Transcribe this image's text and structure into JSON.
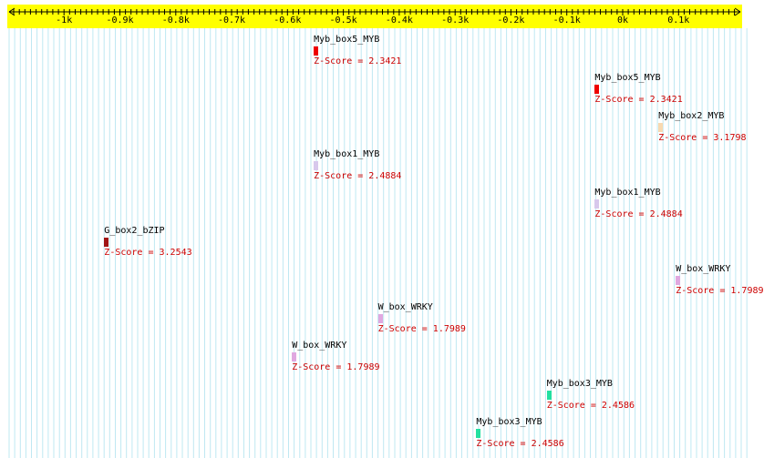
{
  "ruler": {
    "ticks": [
      {
        "value": -1000,
        "label": "-1k"
      },
      {
        "value": -900,
        "label": "-0.9k"
      },
      {
        "value": -800,
        "label": "-0.8k"
      },
      {
        "value": -700,
        "label": "-0.7k"
      },
      {
        "value": -600,
        "label": "-0.6k"
      },
      {
        "value": -500,
        "label": "-0.5k"
      },
      {
        "value": -400,
        "label": "-0.4k"
      },
      {
        "value": -300,
        "label": "-0.3k"
      },
      {
        "value": -200,
        "label": "-0.2k"
      },
      {
        "value": -100,
        "label": "-0.1k"
      },
      {
        "value": 0,
        "label": "0k"
      },
      {
        "value": 100,
        "label": "0.1k"
      }
    ],
    "band_color": "#ffff00",
    "grid_color": "#bfe8f2"
  },
  "sites": [
    {
      "name": "Myb_box5_MYB",
      "score": "Z-Score = 2.3421",
      "position": -553,
      "row": 0,
      "color": "#ee0000"
    },
    {
      "name": "Myb_box5_MYB",
      "score": "Z-Score = 2.3421",
      "position": -50,
      "row": 1,
      "color": "#ee0000"
    },
    {
      "name": "Myb_box2_MYB",
      "score": "Z-Score = 3.1798",
      "position": 64,
      "row": 2,
      "color": "#f8d9b0"
    },
    {
      "name": "Myb_box1_MYB",
      "score": "Z-Score = 2.4884",
      "position": -553,
      "row": 3,
      "color": "#d8c8ec"
    },
    {
      "name": "Myb_box1_MYB",
      "score": "Z-Score = 2.4884",
      "position": -50,
      "row": 4,
      "color": "#d8c8ec"
    },
    {
      "name": "G_box2_bZIP",
      "score": "Z-Score = 3.2543",
      "position": -928,
      "row": 5,
      "color": "#a01414"
    },
    {
      "name": "W_box_WRKY",
      "score": "Z-Score = 1.7989",
      "position": 95,
      "row": 6,
      "color": "#e0a8e0"
    },
    {
      "name": "W_box_WRKY",
      "score": "Z-Score = 1.7989",
      "position": -438,
      "row": 7,
      "color": "#e0a8e0"
    },
    {
      "name": "W_box_WRKY",
      "score": "Z-Score = 1.7989",
      "position": -592,
      "row": 8,
      "color": "#e0a8e0"
    },
    {
      "name": "Myb_box3_MYB",
      "score": "Z-Score = 2.4586",
      "position": -136,
      "row": 9,
      "color": "#22e0a0"
    },
    {
      "name": "Myb_box3_MYB",
      "score": "Z-Score = 2.4586",
      "position": -262,
      "row": 10,
      "color": "#22e0a0"
    }
  ]
}
